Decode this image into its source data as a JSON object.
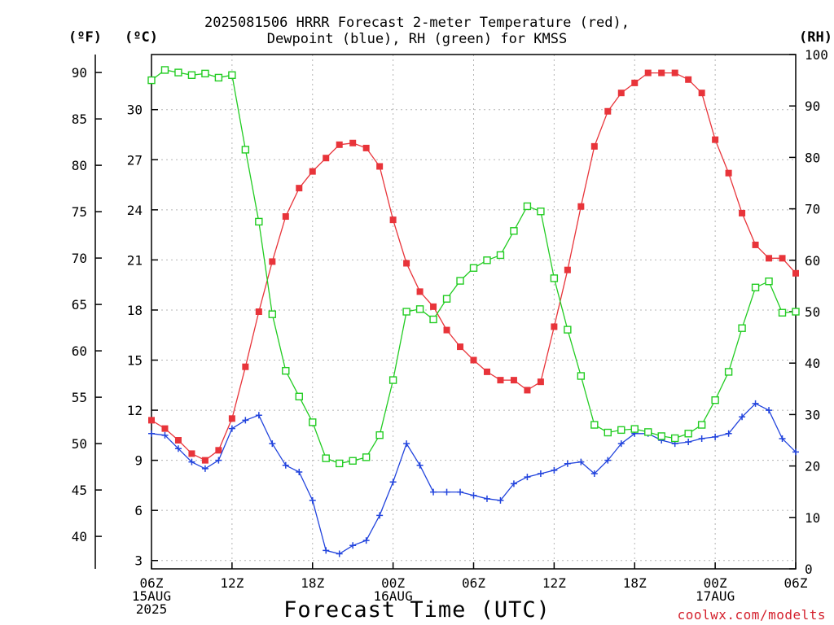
{
  "title_line1": "2025081506 HRRR Forecast 2-meter Temperature (red),",
  "title_line2": "Dewpoint (blue), RH (green) for KMSS",
  "unit_f": "(ºF)",
  "unit_c": "(ºC)",
  "unit_rh": "(RH)",
  "xlabel": "Forecast Time (UTC)",
  "credit": "coolwx.com/modelts",
  "colors": {
    "temperature": "#e8343a",
    "dewpoint": "#2244dd",
    "rh": "#22cc22",
    "credit": "#d4202c"
  },
  "chart_data": {
    "type": "line",
    "x_hours": [
      0,
      1,
      2,
      3,
      4,
      5,
      6,
      7,
      8,
      9,
      10,
      11,
      12,
      13,
      14,
      15,
      16,
      17,
      18,
      19,
      20,
      21,
      22,
      23,
      24,
      25,
      26,
      27,
      28,
      29,
      30,
      31,
      32,
      33,
      34,
      35,
      36,
      37,
      38,
      39,
      40,
      41,
      42,
      43,
      44,
      45,
      46,
      47,
      48
    ],
    "x_ticks": [
      {
        "hour": 0,
        "labels": [
          "06Z",
          "15AUG",
          "2025"
        ]
      },
      {
        "hour": 6,
        "labels": [
          "12Z"
        ]
      },
      {
        "hour": 12,
        "labels": [
          "18Z"
        ]
      },
      {
        "hour": 18,
        "labels": [
          "00Z",
          "16AUG"
        ]
      },
      {
        "hour": 24,
        "labels": [
          "06Z"
        ]
      },
      {
        "hour": 30,
        "labels": [
          "12Z"
        ]
      },
      {
        "hour": 36,
        "labels": [
          "18Z"
        ]
      },
      {
        "hour": 42,
        "labels": [
          "00Z",
          "17AUG"
        ]
      },
      {
        "hour": 48,
        "labels": [
          "06Z"
        ]
      }
    ],
    "ylim_c": [
      2.5,
      33.3
    ],
    "yticks_c": [
      "3",
      "6",
      "9",
      "12",
      "15",
      "18",
      "21",
      "24",
      "27",
      "30"
    ],
    "yticks_f": [
      "40",
      "45",
      "50",
      "55",
      "60",
      "65",
      "70",
      "75",
      "80",
      "85",
      "90"
    ],
    "ylim_rh": [
      0,
      100
    ],
    "yticks_rh": [
      "0",
      "10",
      "20",
      "30",
      "40",
      "50",
      "60",
      "70",
      "80",
      "90",
      "100"
    ],
    "grid": true,
    "series": [
      {
        "key": "temperature",
        "axis": "c",
        "marker": "filled-square",
        "values": [
          11.4,
          10.9,
          10.2,
          9.4,
          9.0,
          9.6,
          11.5,
          14.6,
          17.9,
          20.9,
          23.6,
          25.3,
          26.3,
          27.1,
          27.9,
          28.0,
          27.7,
          26.6,
          23.4,
          20.8,
          19.1,
          18.2,
          16.8,
          15.8,
          15.0,
          14.3,
          13.8,
          13.8,
          13.2,
          13.7,
          17.0,
          20.4,
          24.2,
          27.8,
          29.9,
          31.0,
          31.6,
          32.2,
          32.2,
          32.2,
          31.8,
          31.0,
          28.2,
          26.2,
          23.8,
          21.9,
          21.1,
          21.1,
          20.2
        ]
      },
      {
        "key": "dewpoint",
        "axis": "c",
        "marker": "plus",
        "values": [
          10.6,
          10.5,
          9.7,
          8.9,
          8.5,
          9.0,
          10.9,
          11.4,
          11.7,
          10.0,
          8.7,
          8.3,
          6.6,
          3.6,
          3.4,
          3.9,
          4.2,
          5.7,
          7.7,
          10.0,
          8.7,
          7.1,
          7.1,
          7.1,
          6.9,
          6.7,
          6.6,
          7.6,
          8.0,
          8.2,
          8.4,
          8.8,
          8.9,
          8.2,
          9.0,
          10.0,
          10.6,
          10.6,
          10.2,
          10.0,
          10.1,
          10.3,
          10.4,
          10.6,
          11.6,
          12.4,
          12.0,
          10.3,
          9.5
        ]
      },
      {
        "key": "rh",
        "axis": "rh",
        "marker": "open-square",
        "values": [
          95,
          97,
          96.5,
          96,
          96.3,
          95.5,
          96,
          81.5,
          67.5,
          49.5,
          38.5,
          33.5,
          28.5,
          21.5,
          20.5,
          21,
          21.7,
          26,
          36.7,
          50,
          50.5,
          48.5,
          52.5,
          56,
          58.5,
          60,
          61,
          65.7,
          70.5,
          69.5,
          56.5,
          46.5,
          37.5,
          28,
          26.5,
          27,
          27.2,
          26.6,
          25.8,
          25.4,
          26.3,
          28,
          32.8,
          38.3,
          46.8,
          54.7,
          55.9,
          49.8,
          50
        ]
      }
    ]
  }
}
